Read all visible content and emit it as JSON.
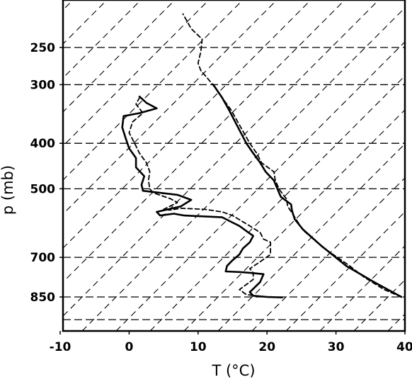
{
  "chart_data": {
    "type": "line",
    "xlabel": "T (°C)",
    "ylabel": "p (mb)",
    "xlim": [
      -10,
      40
    ],
    "x_ticks": [
      -10,
      0,
      10,
      20,
      30,
      40
    ],
    "x_tick_labels": [
      "-10",
      "0",
      "10",
      "20",
      "30",
      "40"
    ],
    "y_scale": "log, pressure decreasing upward",
    "ylim": [
      950,
      205
    ],
    "y_ticks": [
      250,
      300,
      400,
      500,
      700,
      850
    ],
    "y_tick_labels": [
      "250",
      "300",
      "400",
      "500",
      "700",
      "850"
    ],
    "grid": {
      "isobars_mb": [
        250,
        300,
        400,
        500,
        700,
        850,
        950
      ],
      "skewed_isotherms_dashed": true
    },
    "series": [
      {
        "style": "solid",
        "points": [
          {
            "x": 39.5,
            "y": 850
          },
          {
            "x": 35.5,
            "y": 790
          },
          {
            "x": 31.5,
            "y": 730
          },
          {
            "x": 27.8,
            "y": 660
          },
          {
            "x": 25.2,
            "y": 610
          },
          {
            "x": 24.0,
            "y": 580
          },
          {
            "x": 23.6,
            "y": 555
          },
          {
            "x": 23.5,
            "y": 540
          },
          {
            "x": 22.0,
            "y": 520
          },
          {
            "x": 21.5,
            "y": 500
          },
          {
            "x": 21.0,
            "y": 480
          },
          {
            "x": 19.8,
            "y": 460
          },
          {
            "x": 19.0,
            "y": 440
          },
          {
            "x": 18.0,
            "y": 420
          },
          {
            "x": 17.0,
            "y": 400
          },
          {
            "x": 15.8,
            "y": 370
          },
          {
            "x": 14.5,
            "y": 340
          },
          {
            "x": 13.5,
            "y": 320
          },
          {
            "x": 12.2,
            "y": 300
          }
        ]
      },
      {
        "style": "dashed",
        "points": [
          {
            "x": 39.5,
            "y": 850
          },
          {
            "x": 37.0,
            "y": 820
          },
          {
            "x": 34.0,
            "y": 770
          },
          {
            "x": 32.0,
            "y": 730
          },
          {
            "x": 28.0,
            "y": 665
          },
          {
            "x": 25.2,
            "y": 612
          },
          {
            "x": 24.2,
            "y": 580
          },
          {
            "x": 23.0,
            "y": 545
          },
          {
            "x": 22.8,
            "y": 525
          },
          {
            "x": 21.8,
            "y": 502
          },
          {
            "x": 21.2,
            "y": 480
          },
          {
            "x": 21.0,
            "y": 460
          },
          {
            "x": 19.2,
            "y": 440
          },
          {
            "x": 18.5,
            "y": 420
          },
          {
            "x": 17.5,
            "y": 400
          },
          {
            "x": 16.2,
            "y": 370
          },
          {
            "x": 14.8,
            "y": 340
          },
          {
            "x": 13.5,
            "y": 320
          },
          {
            "x": 12.3,
            "y": 302
          },
          {
            "x": 11.3,
            "y": 290
          },
          {
            "x": 10.4,
            "y": 280
          },
          {
            "x": 10.0,
            "y": 270
          },
          {
            "x": 10.4,
            "y": 255
          },
          {
            "x": 10.6,
            "y": 240
          },
          {
            "x": 9.0,
            "y": 228
          },
          {
            "x": 7.8,
            "y": 212
          }
        ]
      },
      {
        "style": "solid",
        "points": [
          {
            "x": 22.2,
            "y": 852
          },
          {
            "x": 20.0,
            "y": 850
          },
          {
            "x": 18.0,
            "y": 845
          },
          {
            "x": 17.5,
            "y": 830
          },
          {
            "x": 19.0,
            "y": 790
          },
          {
            "x": 19.5,
            "y": 760
          },
          {
            "x": 17.5,
            "y": 755
          },
          {
            "x": 16.0,
            "y": 752
          },
          {
            "x": 14.0,
            "y": 750
          },
          {
            "x": 14.2,
            "y": 730
          },
          {
            "x": 15.0,
            "y": 710
          },
          {
            "x": 16.0,
            "y": 690
          },
          {
            "x": 16.5,
            "y": 670
          },
          {
            "x": 17.5,
            "y": 650
          },
          {
            "x": 18.0,
            "y": 630
          },
          {
            "x": 17.0,
            "y": 615
          },
          {
            "x": 16.0,
            "y": 600
          },
          {
            "x": 15.0,
            "y": 590
          },
          {
            "x": 13.5,
            "y": 575
          },
          {
            "x": 8.0,
            "y": 570
          },
          {
            "x": 6.5,
            "y": 565
          },
          {
            "x": 4.5,
            "y": 570
          },
          {
            "x": 4.0,
            "y": 560
          },
          {
            "x": 7.5,
            "y": 545
          },
          {
            "x": 9.0,
            "y": 528
          },
          {
            "x": 7.0,
            "y": 515
          },
          {
            "x": 2.0,
            "y": 505
          },
          {
            "x": 1.8,
            "y": 490
          },
          {
            "x": 2.2,
            "y": 470
          },
          {
            "x": 1.0,
            "y": 450
          },
          {
            "x": 1.0,
            "y": 430
          },
          {
            "x": 0.0,
            "y": 410
          },
          {
            "x": -0.5,
            "y": 390
          },
          {
            "x": -1.0,
            "y": 370
          },
          {
            "x": -0.8,
            "y": 350
          },
          {
            "x": 1.5,
            "y": 345
          },
          {
            "x": 4.0,
            "y": 337
          },
          {
            "x": 2.5,
            "y": 328
          },
          {
            "x": 1.5,
            "y": 318
          }
        ]
      },
      {
        "style": "dashed",
        "points": [
          {
            "x": 21.0,
            "y": 850
          },
          {
            "x": 19.0,
            "y": 848
          },
          {
            "x": 17.0,
            "y": 840
          },
          {
            "x": 16.0,
            "y": 820
          },
          {
            "x": 18.0,
            "y": 780
          },
          {
            "x": 18.0,
            "y": 755
          },
          {
            "x": 17.5,
            "y": 740
          },
          {
            "x": 19.0,
            "y": 715
          },
          {
            "x": 20.5,
            "y": 690
          },
          {
            "x": 20.5,
            "y": 670
          },
          {
            "x": 20.5,
            "y": 650
          },
          {
            "x": 19.5,
            "y": 640
          },
          {
            "x": 19.0,
            "y": 620
          },
          {
            "x": 17.5,
            "y": 600
          },
          {
            "x": 15.0,
            "y": 570
          },
          {
            "x": 13.5,
            "y": 560
          },
          {
            "x": 11.0,
            "y": 553
          },
          {
            "x": 7.5,
            "y": 550
          },
          {
            "x": 6.0,
            "y": 555
          },
          {
            "x": 5.0,
            "y": 553
          },
          {
            "x": 7.0,
            "y": 535
          },
          {
            "x": 6.0,
            "y": 525
          },
          {
            "x": 3.5,
            "y": 510
          },
          {
            "x": 3.0,
            "y": 500
          },
          {
            "x": 2.8,
            "y": 480
          },
          {
            "x": 3.0,
            "y": 460
          },
          {
            "x": 2.5,
            "y": 440
          },
          {
            "x": 1.5,
            "y": 420
          },
          {
            "x": 0.8,
            "y": 400
          },
          {
            "x": 0.0,
            "y": 380
          },
          {
            "x": 0.5,
            "y": 360
          },
          {
            "x": 2.0,
            "y": 345
          },
          {
            "x": 1.0,
            "y": 330
          },
          {
            "x": 1.5,
            "y": 320
          }
        ]
      }
    ]
  }
}
